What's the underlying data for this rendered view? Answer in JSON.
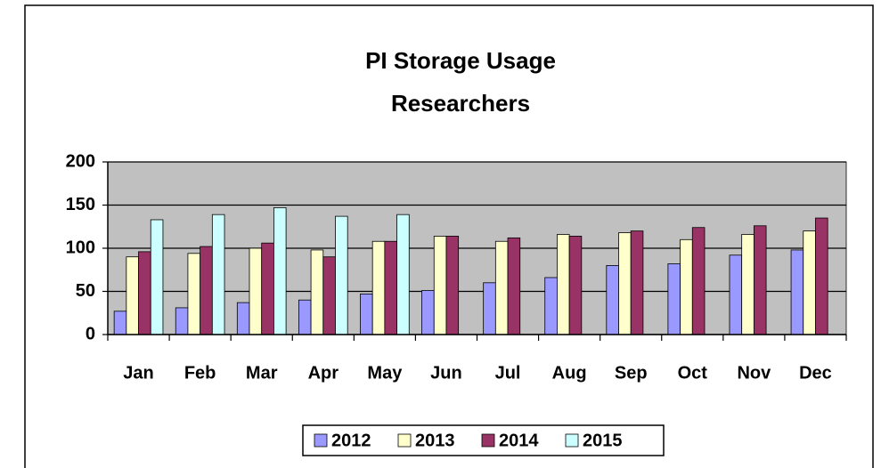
{
  "chart_data": {
    "type": "bar",
    "title": "PI Storage Usage",
    "subtitle": "Researchers",
    "categories": [
      "Jan",
      "Feb",
      "Mar",
      "Apr",
      "May",
      "Jun",
      "Jul",
      "Aug",
      "Sep",
      "Oct",
      "Nov",
      "Dec"
    ],
    "series": [
      {
        "name": "2012",
        "color": "#9999ff",
        "values": [
          27,
          31,
          37,
          40,
          47,
          51,
          60,
          66,
          80,
          82,
          92,
          98
        ]
      },
      {
        "name": "2013",
        "color": "#ffffcc",
        "values": [
          90,
          94,
          100,
          98,
          108,
          114,
          108,
          116,
          118,
          110,
          116,
          120
        ]
      },
      {
        "name": "2014",
        "color": "#993366",
        "values": [
          96,
          102,
          106,
          90,
          108,
          114,
          112,
          114,
          120,
          124,
          126,
          135
        ]
      },
      {
        "name": "2015",
        "color": "#ccffff",
        "values": [
          133,
          139,
          147,
          137,
          139,
          null,
          null,
          null,
          null,
          null,
          null,
          null
        ]
      }
    ],
    "ylim": [
      0,
      200
    ],
    "yticks": [
      0,
      50,
      100,
      150,
      200
    ],
    "grid": true,
    "legend": "bottom"
  }
}
